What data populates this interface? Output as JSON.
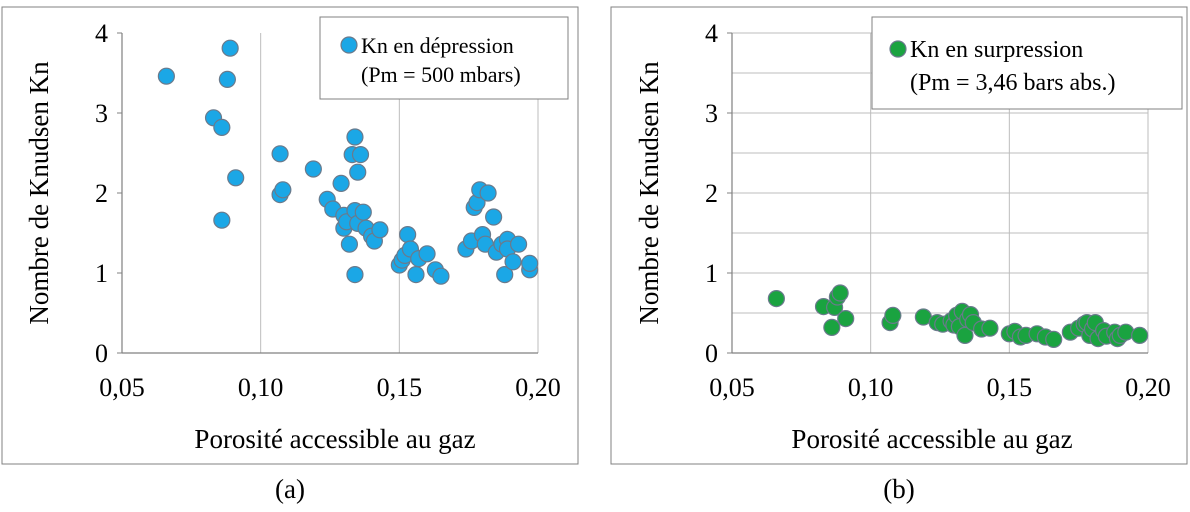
{
  "chart_data": [
    {
      "type": "scatter",
      "panel_label": "(a)",
      "xlabel": "Porosité accessible au gaz",
      "ylabel": "Nombre de Knudsen Kn",
      "xlim": [
        0.05,
        0.2
      ],
      "ylim": [
        0,
        4
      ],
      "x_ticks": [
        "0,05",
        "0,10",
        "0,15",
        "0,20"
      ],
      "y_ticks": [
        "0",
        "1",
        "2",
        "3",
        "4"
      ],
      "x_tick_values": [
        0.05,
        0.1,
        0.15,
        0.2
      ],
      "y_tick_values": [
        0,
        1,
        2,
        3,
        4
      ],
      "grid": "vertical",
      "legend": {
        "placement": "top-right",
        "line1": "Kn en dépression",
        "line2": "(Pm = 500 mbars)"
      },
      "series": [
        {
          "name": "Kn en dépression",
          "color": "#1ba7e6",
          "points": [
            [
              0.066,
              3.46
            ],
            [
              0.083,
              2.94
            ],
            [
              0.086,
              2.82
            ],
            [
              0.086,
              1.66
            ],
            [
              0.088,
              3.42
            ],
            [
              0.089,
              3.81
            ],
            [
              0.091,
              2.19
            ],
            [
              0.107,
              2.49
            ],
            [
              0.107,
              1.98
            ],
            [
              0.108,
              2.04
            ],
            [
              0.119,
              2.3
            ],
            [
              0.124,
              1.92
            ],
            [
              0.126,
              1.8
            ],
            [
              0.129,
              2.12
            ],
            [
              0.13,
              1.72
            ],
            [
              0.13,
              1.56
            ],
            [
              0.131,
              1.64
            ],
            [
              0.132,
              1.36
            ],
            [
              0.133,
              2.48
            ],
            [
              0.134,
              2.7
            ],
            [
              0.134,
              1.78
            ],
            [
              0.134,
              0.98
            ],
            [
              0.135,
              2.26
            ],
            [
              0.135,
              1.62
            ],
            [
              0.136,
              2.48
            ],
            [
              0.137,
              1.76
            ],
            [
              0.138,
              1.56
            ],
            [
              0.14,
              1.46
            ],
            [
              0.141,
              1.4
            ],
            [
              0.143,
              1.54
            ],
            [
              0.15,
              1.1
            ],
            [
              0.151,
              1.16
            ],
            [
              0.152,
              1.22
            ],
            [
              0.153,
              1.48
            ],
            [
              0.154,
              1.3
            ],
            [
              0.156,
              0.98
            ],
            [
              0.157,
              1.18
            ],
            [
              0.16,
              1.24
            ],
            [
              0.163,
              1.04
            ],
            [
              0.165,
              0.96
            ],
            [
              0.174,
              1.3
            ],
            [
              0.176,
              1.4
            ],
            [
              0.177,
              1.82
            ],
            [
              0.178,
              1.88
            ],
            [
              0.179,
              2.04
            ],
            [
              0.18,
              1.48
            ],
            [
              0.181,
              1.36
            ],
            [
              0.182,
              2.0
            ],
            [
              0.184,
              1.7
            ],
            [
              0.185,
              1.26
            ],
            [
              0.187,
              1.36
            ],
            [
              0.188,
              0.98
            ],
            [
              0.189,
              1.42
            ],
            [
              0.189,
              1.3
            ],
            [
              0.191,
              1.14
            ],
            [
              0.193,
              1.36
            ],
            [
              0.197,
              1.04
            ],
            [
              0.197,
              1.12
            ]
          ]
        }
      ]
    },
    {
      "type": "scatter",
      "panel_label": "(b)",
      "xlabel": "Porosité accessible au gaz",
      "ylabel": "Nombre de Knudsen Kn",
      "xlim": [
        0.05,
        0.2
      ],
      "ylim": [
        0,
        4
      ],
      "x_ticks": [
        "0,05",
        "0,10",
        "0,15",
        "0,20"
      ],
      "y_ticks": [
        "0",
        "1",
        "2",
        "3",
        "4"
      ],
      "x_tick_values": [
        0.05,
        0.1,
        0.15,
        0.2
      ],
      "y_tick_values": [
        0,
        1,
        2,
        3,
        4
      ],
      "grid": "vertical and horizontal (every 0.5)",
      "legend": {
        "placement": "top-right",
        "line1": "Kn en surpression",
        "line2": "(Pm = 3,46 bars abs.)"
      },
      "series": [
        {
          "name": "Kn en surpression",
          "color": "#1aa340",
          "points": [
            [
              0.066,
              0.68
            ],
            [
              0.083,
              0.58
            ],
            [
              0.086,
              0.32
            ],
            [
              0.087,
              0.57
            ],
            [
              0.088,
              0.7
            ],
            [
              0.089,
              0.75
            ],
            [
              0.091,
              0.43
            ],
            [
              0.107,
              0.38
            ],
            [
              0.108,
              0.47
            ],
            [
              0.119,
              0.45
            ],
            [
              0.124,
              0.38
            ],
            [
              0.126,
              0.36
            ],
            [
              0.129,
              0.4
            ],
            [
              0.13,
              0.35
            ],
            [
              0.131,
              0.47
            ],
            [
              0.132,
              0.33
            ],
            [
              0.133,
              0.52
            ],
            [
              0.134,
              0.22
            ],
            [
              0.135,
              0.42
            ],
            [
              0.136,
              0.48
            ],
            [
              0.137,
              0.38
            ],
            [
              0.14,
              0.3
            ],
            [
              0.143,
              0.31
            ],
            [
              0.15,
              0.24
            ],
            [
              0.152,
              0.27
            ],
            [
              0.154,
              0.2
            ],
            [
              0.156,
              0.22
            ],
            [
              0.16,
              0.24
            ],
            [
              0.163,
              0.2
            ],
            [
              0.166,
              0.17
            ],
            [
              0.172,
              0.26
            ],
            [
              0.175,
              0.31
            ],
            [
              0.177,
              0.36
            ],
            [
              0.178,
              0.38
            ],
            [
              0.179,
              0.22
            ],
            [
              0.18,
              0.3
            ],
            [
              0.181,
              0.38
            ],
            [
              0.182,
              0.18
            ],
            [
              0.184,
              0.28
            ],
            [
              0.185,
              0.21
            ],
            [
              0.188,
              0.26
            ],
            [
              0.189,
              0.18
            ],
            [
              0.19,
              0.22
            ],
            [
              0.192,
              0.26
            ],
            [
              0.197,
              0.22
            ]
          ]
        }
      ]
    }
  ]
}
